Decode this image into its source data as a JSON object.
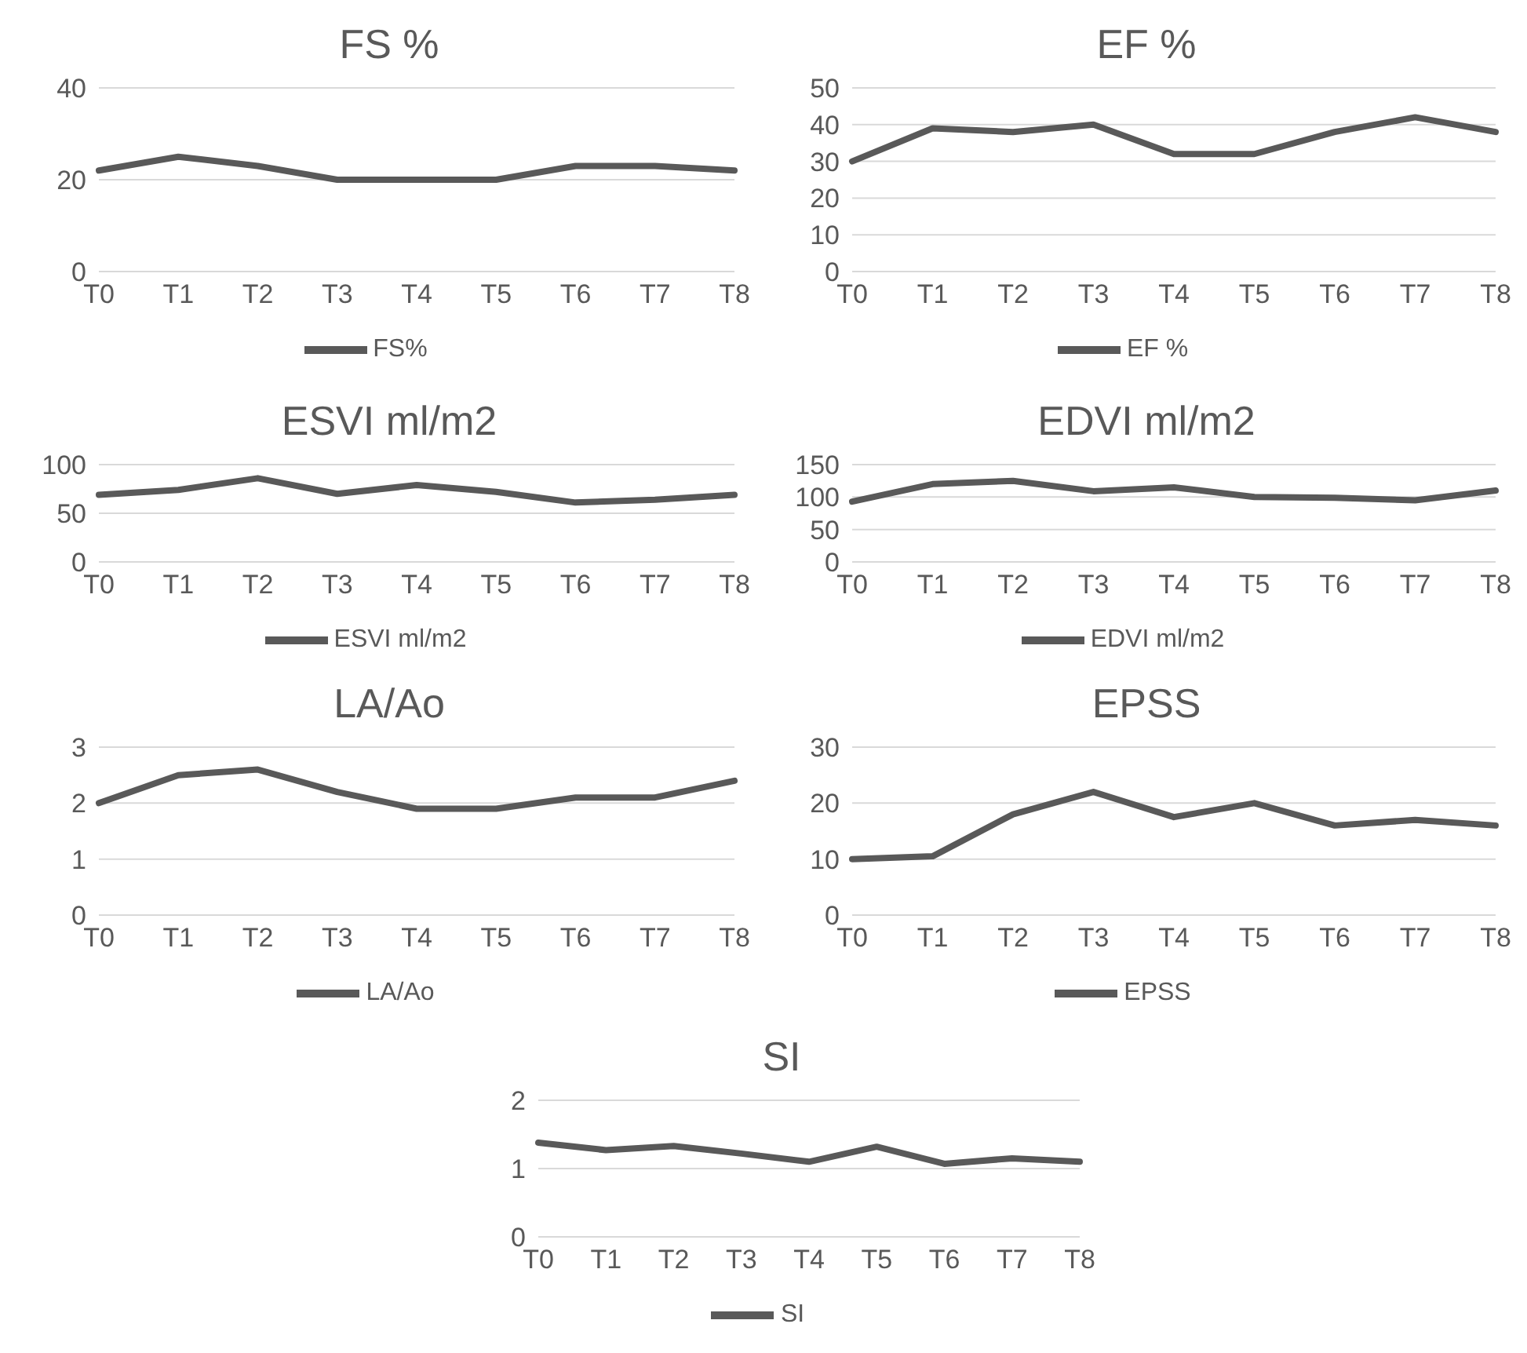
{
  "chart_data": [
    {
      "type": "line",
      "title": "FS %",
      "categories": [
        "T0",
        "T1",
        "T2",
        "T3",
        "T4",
        "T5",
        "T6",
        "T7",
        "T8"
      ],
      "series": [
        {
          "name": "FS%",
          "color": "#595959",
          "values": [
            22,
            25,
            23,
            20,
            20,
            20,
            23,
            23,
            22
          ]
        }
      ],
      "ylim": [
        0,
        40
      ],
      "yticks": [
        0,
        20,
        40
      ],
      "grid": "y",
      "legend": "bottom",
      "marker": "none"
    },
    {
      "type": "line",
      "title": "EF %",
      "categories": [
        "T0",
        "T1",
        "T2",
        "T3",
        "T4",
        "T5",
        "T6",
        "T7",
        "T8"
      ],
      "series": [
        {
          "name": "EF %",
          "color": "#595959",
          "values": [
            30,
            39,
            38,
            40,
            32,
            32,
            38,
            42,
            38
          ]
        }
      ],
      "ylim": [
        0,
        50
      ],
      "yticks": [
        0,
        10,
        20,
        30,
        40,
        50
      ],
      "grid": "y",
      "legend": "bottom",
      "marker": "none"
    },
    {
      "type": "line",
      "title": "ESVI ml/m2",
      "categories": [
        "T0",
        "T1",
        "T2",
        "T3",
        "T4",
        "T5",
        "T6",
        "T7",
        "T8"
      ],
      "series": [
        {
          "name": "ESVI ml/m2",
          "color": "#595959",
          "values": [
            69,
            74,
            86,
            70,
            79,
            72,
            61,
            64,
            69
          ]
        }
      ],
      "ylim": [
        0,
        100
      ],
      "yticks": [
        0,
        50,
        100
      ],
      "grid": "y",
      "legend": "bottom",
      "marker": "none"
    },
    {
      "type": "line",
      "title": "EDVI ml/m2",
      "categories": [
        "T0",
        "T1",
        "T2",
        "T3",
        "T4",
        "T5",
        "T6",
        "T7",
        "T8"
      ],
      "series": [
        {
          "name": "EDVI ml/m2",
          "color": "#595959",
          "values": [
            93,
            120,
            125,
            109,
            115,
            100,
            99,
            95,
            110
          ]
        }
      ],
      "ylim": [
        0,
        150
      ],
      "yticks": [
        0,
        50,
        100,
        150
      ],
      "grid": "y",
      "legend": "bottom",
      "marker": "none"
    },
    {
      "type": "line",
      "title": "LA/Ao",
      "categories": [
        "T0",
        "T1",
        "T2",
        "T3",
        "T4",
        "T5",
        "T6",
        "T7",
        "T8"
      ],
      "series": [
        {
          "name": "LA/Ao",
          "color": "#595959",
          "values": [
            2.0,
            2.5,
            2.6,
            2.2,
            1.9,
            1.9,
            2.1,
            2.1,
            2.4
          ]
        }
      ],
      "ylim": [
        0,
        3
      ],
      "yticks": [
        0,
        1,
        2,
        3
      ],
      "grid": "y",
      "legend": "bottom",
      "marker": "none"
    },
    {
      "type": "line",
      "title": "EPSS",
      "categories": [
        "T0",
        "T1",
        "T2",
        "T3",
        "T4",
        "T5",
        "T6",
        "T7",
        "T8"
      ],
      "series": [
        {
          "name": "EPSS",
          "color": "#595959",
          "values": [
            10,
            10.5,
            18,
            22,
            17.5,
            20,
            16,
            17,
            16
          ]
        }
      ],
      "ylim": [
        0,
        30
      ],
      "yticks": [
        0,
        10,
        20,
        30
      ],
      "grid": "y",
      "legend": "bottom",
      "marker": "none"
    },
    {
      "type": "line",
      "title": "SI",
      "categories": [
        "T0",
        "T1",
        "T2",
        "T3",
        "T4",
        "T5",
        "T6",
        "T7",
        "T8"
      ],
      "series": [
        {
          "name": "SI",
          "color": "#595959",
          "values": [
            1.38,
            1.27,
            1.33,
            1.22,
            1.1,
            1.32,
            1.07,
            1.15,
            1.1
          ]
        }
      ],
      "ylim": [
        0,
        2
      ],
      "yticks": [
        0,
        1,
        2
      ],
      "grid": "y",
      "legend": "bottom",
      "marker": "none"
    }
  ]
}
